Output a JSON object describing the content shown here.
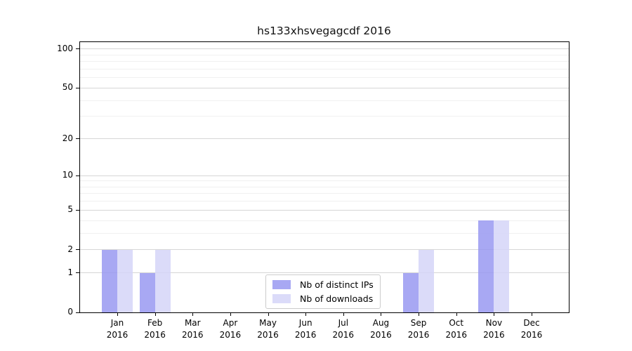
{
  "chart_data": {
    "type": "bar",
    "title": "hs133xhsvegagcdf 2016",
    "x_tick_labels": [
      {
        "month": "Jan",
        "year": "2016"
      },
      {
        "month": "Feb",
        "year": "2016"
      },
      {
        "month": "Mar",
        "year": "2016"
      },
      {
        "month": "Apr",
        "year": "2016"
      },
      {
        "month": "May",
        "year": "2016"
      },
      {
        "month": "Jun",
        "year": "2016"
      },
      {
        "month": "Jul",
        "year": "2016"
      },
      {
        "month": "Aug",
        "year": "2016"
      },
      {
        "month": "Sep",
        "year": "2016"
      },
      {
        "month": "Oct",
        "year": "2016"
      },
      {
        "month": "Nov",
        "year": "2016"
      },
      {
        "month": "Dec",
        "year": "2016"
      }
    ],
    "series": [
      {
        "name": "Nb of distinct IPs",
        "color": "#9595f0",
        "alpha": 0.82,
        "values": [
          2,
          1,
          0,
          0,
          0,
          0,
          0,
          0,
          1,
          0,
          4,
          0
        ]
      },
      {
        "name": "Nb of downloads",
        "color": "#d5d5f8",
        "alpha": 0.85,
        "values": [
          2,
          2,
          0,
          0,
          0,
          0,
          0,
          0,
          2,
          0,
          4,
          0
        ]
      }
    ],
    "y_axis": {
      "scale": "log10(1+value)",
      "major_ticks": [
        {
          "value": 0,
          "label": "0"
        },
        {
          "value": 1,
          "label": "1"
        },
        {
          "value": 2,
          "label": "2"
        },
        {
          "value": 5,
          "label": "5"
        },
        {
          "value": 10,
          "label": "10"
        },
        {
          "value": 20,
          "label": "20"
        },
        {
          "value": 50,
          "label": "50"
        },
        {
          "value": 100,
          "label": "100"
        }
      ],
      "minor_ticks": [
        3,
        4,
        6,
        7,
        8,
        9,
        30,
        40,
        60,
        70,
        80,
        90
      ],
      "top_value": 113
    },
    "legend_position": "lower center",
    "grid": true,
    "colors": {
      "background": "#ffffff",
      "spine": "#000000",
      "grid_major": "#d6d6d6",
      "grid_minor": "#f0f0f0",
      "text": "#000000",
      "legend_border": "#cccccc"
    }
  }
}
